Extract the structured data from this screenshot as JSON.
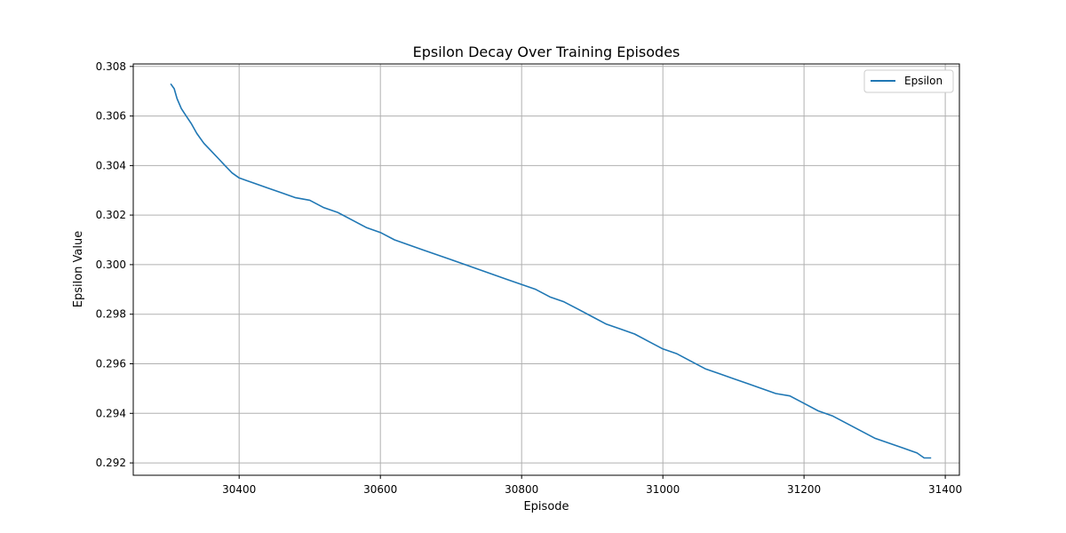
{
  "chart_data": {
    "type": "line",
    "title": "Epsilon Decay Over Training Episodes",
    "xlabel": "Episode",
    "ylabel": "Epsilon Value",
    "xlim": [
      30250,
      31420
    ],
    "ylim": [
      0.2915,
      0.3081
    ],
    "xticks": [
      30400,
      30600,
      30800,
      31000,
      31200,
      31400
    ],
    "xtick_labels": [
      "30400",
      "30600",
      "30800",
      "31000",
      "31200",
      "31400"
    ],
    "yticks": [
      0.292,
      0.294,
      0.296,
      0.298,
      0.3,
      0.302,
      0.304,
      0.306,
      0.308
    ],
    "ytick_labels": [
      "0.292",
      "0.294",
      "0.296",
      "0.298",
      "0.300",
      "0.302",
      "0.304",
      "0.306",
      "0.308"
    ],
    "grid": true,
    "legend_position": "top-right",
    "series": [
      {
        "name": "Epsilon",
        "color": "#1f77b4",
        "x": [
          30303,
          30308,
          30312,
          30318,
          30325,
          30332,
          30340,
          30350,
          30360,
          30370,
          30380,
          30390,
          30400,
          30410,
          30420,
          30440,
          30460,
          30480,
          30500,
          30520,
          30540,
          30560,
          30580,
          30600,
          30620,
          30640,
          30660,
          30680,
          30700,
          30720,
          30740,
          30760,
          30780,
          30800,
          30820,
          30840,
          30860,
          30880,
          30900,
          30920,
          30940,
          30960,
          30980,
          31000,
          31020,
          31040,
          31060,
          31080,
          31100,
          31120,
          31140,
          31160,
          31180,
          31200,
          31220,
          31240,
          31260,
          31280,
          31300,
          31320,
          31340,
          31360,
          31370,
          31380
        ],
        "y": [
          0.3073,
          0.3071,
          0.3067,
          0.3063,
          0.306,
          0.3057,
          0.3053,
          0.3049,
          0.3046,
          0.3043,
          0.304,
          0.3037,
          0.3035,
          0.3034,
          0.3033,
          0.3031,
          0.3029,
          0.3027,
          0.3026,
          0.3023,
          0.3021,
          0.3018,
          0.3015,
          0.3013,
          0.301,
          0.3008,
          0.3006,
          0.3004,
          0.3002,
          0.3,
          0.2998,
          0.2996,
          0.2994,
          0.2992,
          0.299,
          0.2987,
          0.2985,
          0.2982,
          0.2979,
          0.2976,
          0.2974,
          0.2972,
          0.2969,
          0.2966,
          0.2964,
          0.2961,
          0.2958,
          0.2956,
          0.2954,
          0.2952,
          0.295,
          0.2948,
          0.2947,
          0.2944,
          0.2941,
          0.2939,
          0.2936,
          0.2933,
          0.293,
          0.2928,
          0.2926,
          0.2924,
          0.2922,
          0.2922
        ]
      }
    ]
  }
}
